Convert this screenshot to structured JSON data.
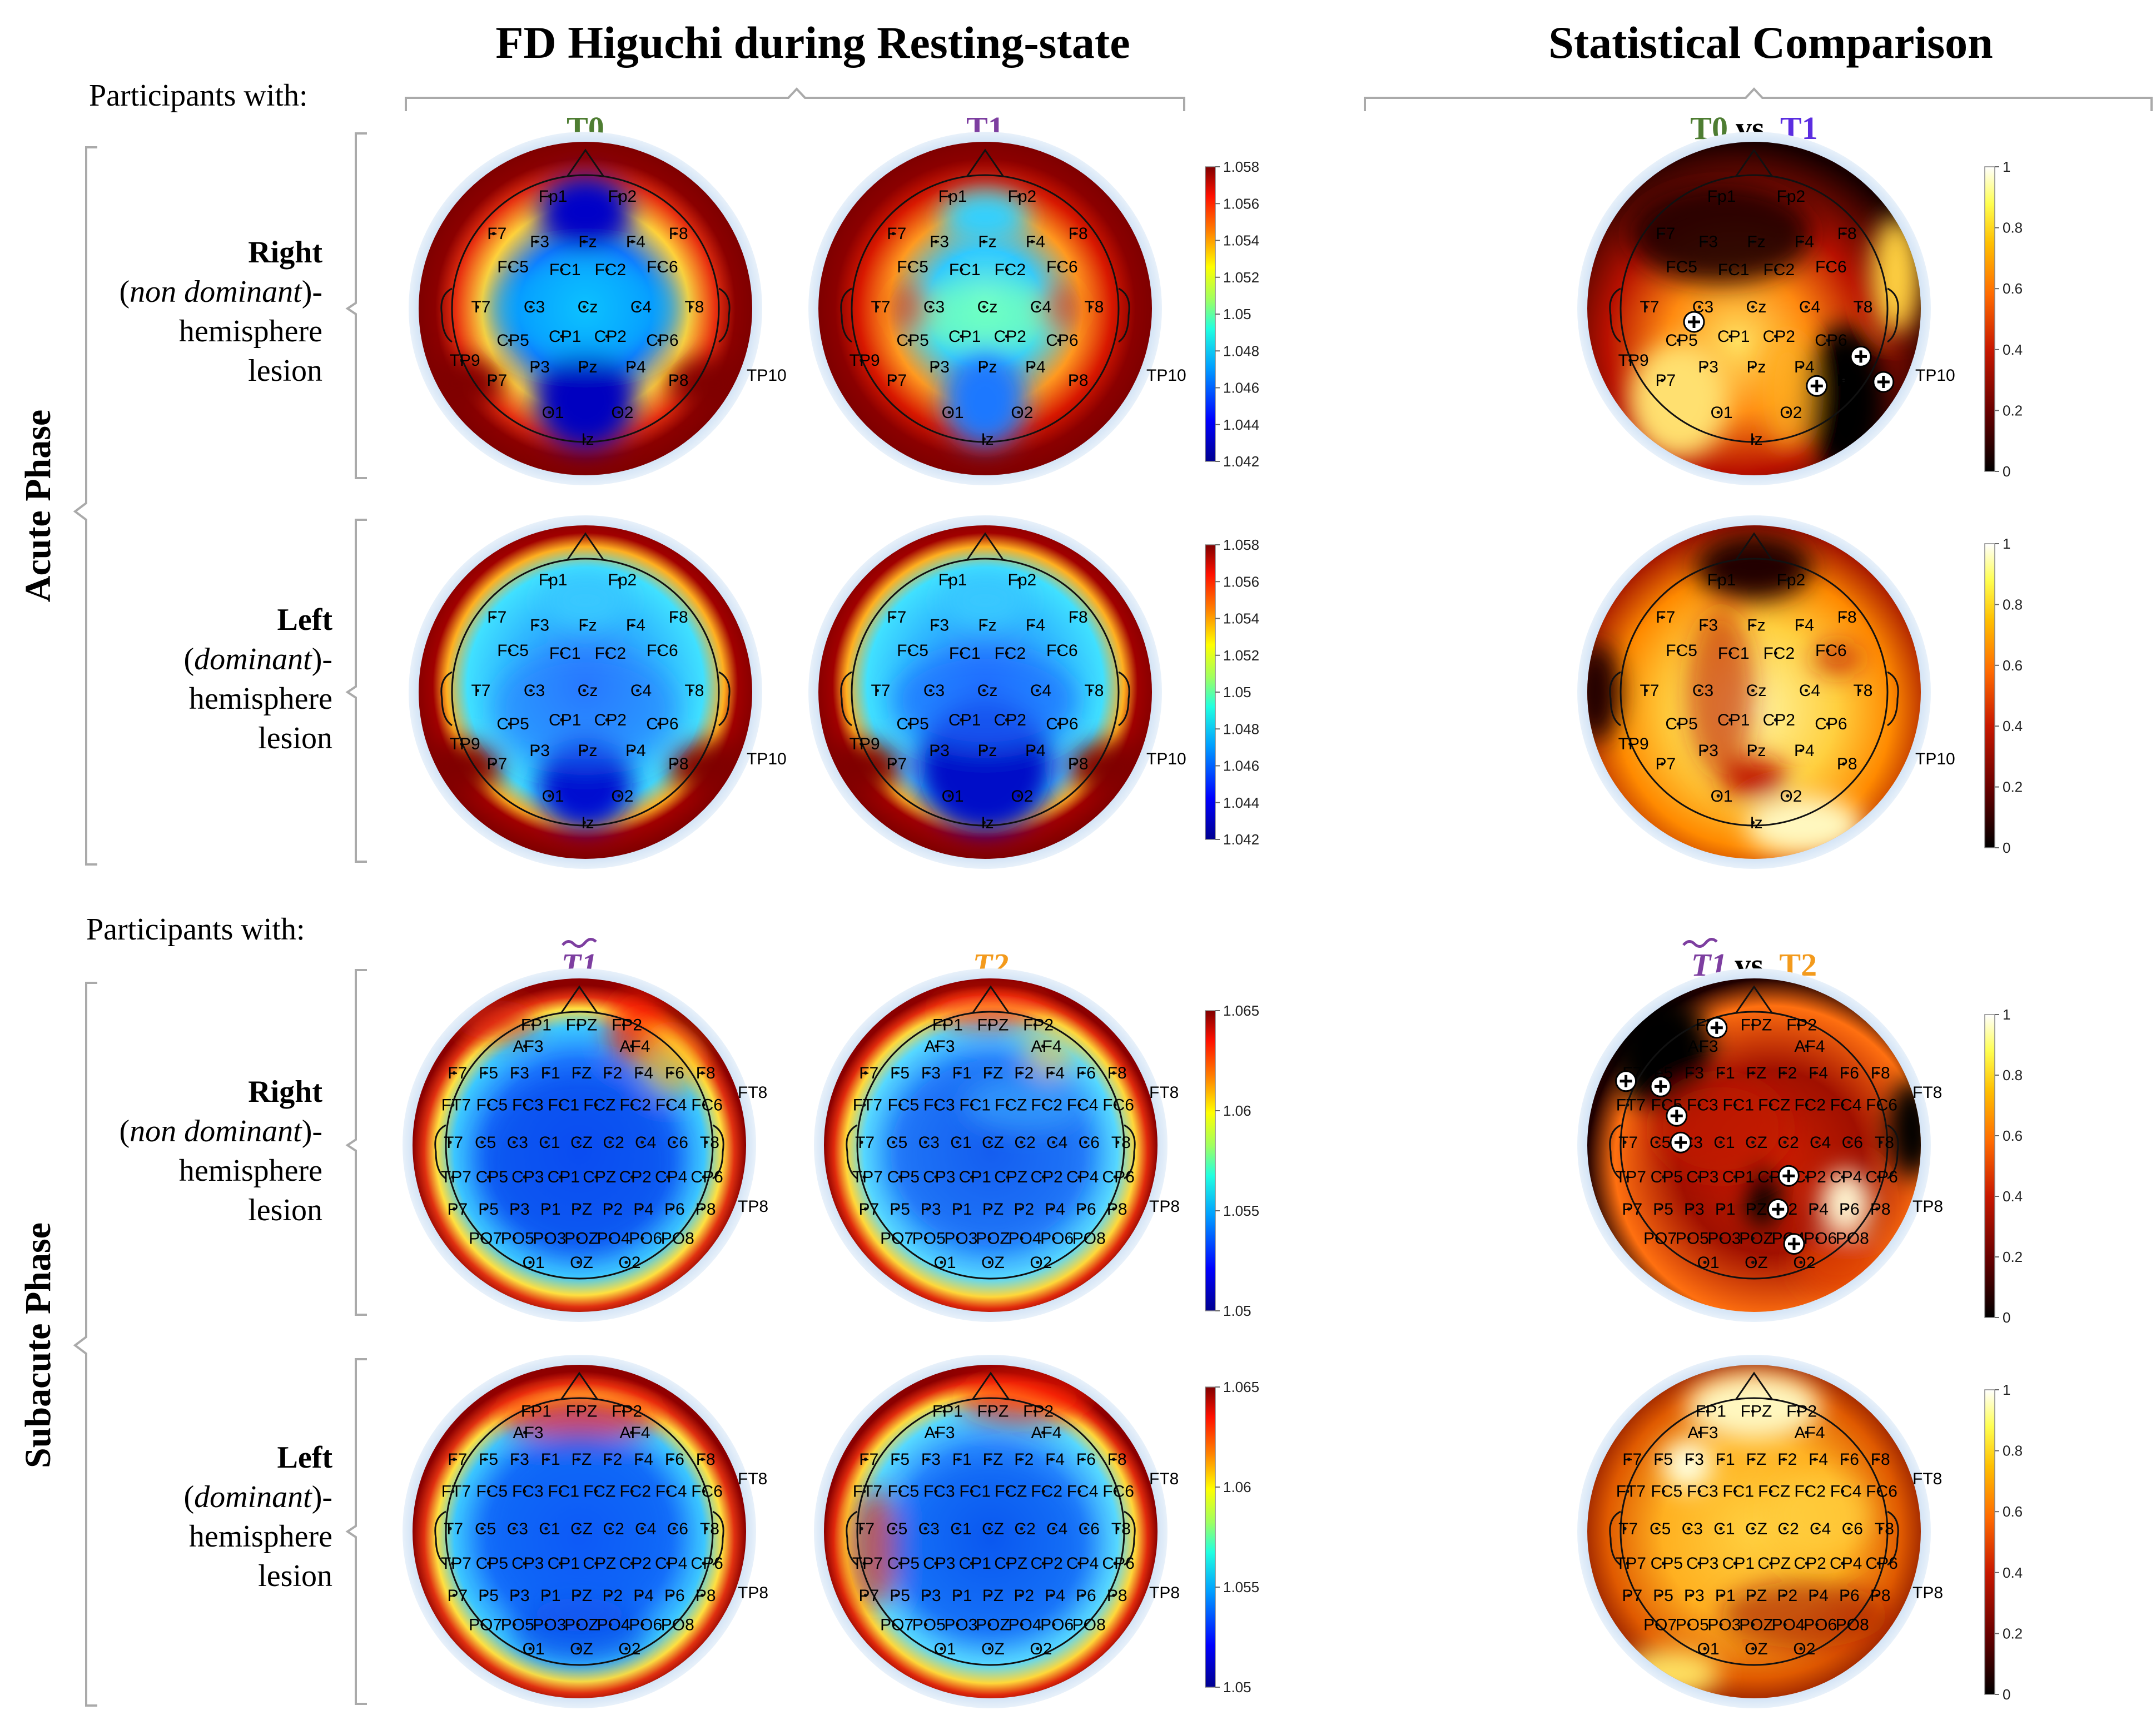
{
  "headers": {
    "main_title": "FD Higuchi during Resting-state",
    "stat_title": "Statistical Comparison",
    "participants_with": "Participants with:"
  },
  "phases": {
    "acute": "Acute Phase",
    "subacute": "Subacute Phase"
  },
  "lesions": {
    "right": {
      "name": "Right",
      "pre": "(",
      "italic": "non dominant",
      "post": ")-",
      "line3": "hemisphere",
      "line4": "lesion"
    },
    "left": {
      "name": "Left",
      "pre": "(",
      "italic": "dominant",
      "post": ")-",
      "line3": "hemisphere",
      "line4": "lesion"
    }
  },
  "time_labels": {
    "t0": "T0",
    "t1": "T1",
    "t1_tilde": "T1",
    "t2": "T2",
    "vs": "vs."
  },
  "colors": {
    "t0": "#4e7d32",
    "t1": "#7d3ea0",
    "t1_stat": "#5b2de0",
    "t2": "#f39a1c",
    "jet": [
      "#00008f",
      "#0000ff",
      "#00a0ff",
      "#20ffe0",
      "#9fff60",
      "#ffff00",
      "#ff8000",
      "#ff1000",
      "#800000"
    ],
    "hot": [
      "#000000",
      "#6a0000",
      "#c81800",
      "#ff6a00",
      "#ffc000",
      "#ffff50",
      "#ffffff"
    ]
  },
  "colorbars": {
    "acute_fd": [
      "1.058",
      "1.056",
      "1.054",
      "1.052",
      "1.05",
      "1.048",
      "1.046",
      "1.044",
      "1.042"
    ],
    "subacute_fd": [
      "1.065",
      "1.06",
      "1.055",
      "1.05"
    ],
    "stat": [
      "1",
      "0.8",
      "0.6",
      "0.4",
      "0.2",
      "0"
    ]
  },
  "electrodes_acute": [
    "Fp1",
    "Fp2",
    "F7",
    "F3",
    "Fz",
    "F4",
    "F8",
    "FC5",
    "FC1",
    "FC2",
    "FC6",
    "T7",
    "C3",
    "Cz",
    "C4",
    "T8",
    "CP5",
    "CP1",
    "CP2",
    "CP6",
    "TP9",
    "P7",
    "P3",
    "Pz",
    "P4",
    "P8",
    "O1",
    "O2",
    "Iz"
  ],
  "electrode_tp10": "TP10",
  "electrodes_subacute": [
    "FP1",
    "FPZ",
    "FP2",
    "AF3",
    "AF4",
    "F7",
    "F5",
    "F3",
    "F1",
    "FZ",
    "F2",
    "F4",
    "F6",
    "F8",
    "FT7",
    "FC5",
    "FC3",
    "FC1",
    "FCZ",
    "FC2",
    "FC4",
    "FC6",
    "T7",
    "C5",
    "C3",
    "C1",
    "CZ",
    "C2",
    "C4",
    "C6",
    "T8",
    "TP7",
    "CP5",
    "CP3",
    "CP1",
    "CPZ",
    "CP2",
    "CP4",
    "CP6",
    "P7",
    "P5",
    "P3",
    "P1",
    "PZ",
    "P2",
    "P4",
    "P6",
    "P8",
    "PO7",
    "PO5",
    "PO3",
    "POZ",
    "PO4",
    "PO6",
    "PO8",
    "O1",
    "OZ",
    "O2"
  ],
  "electrodes_subacute_outer": [
    "FT8",
    "TP8"
  ]
}
